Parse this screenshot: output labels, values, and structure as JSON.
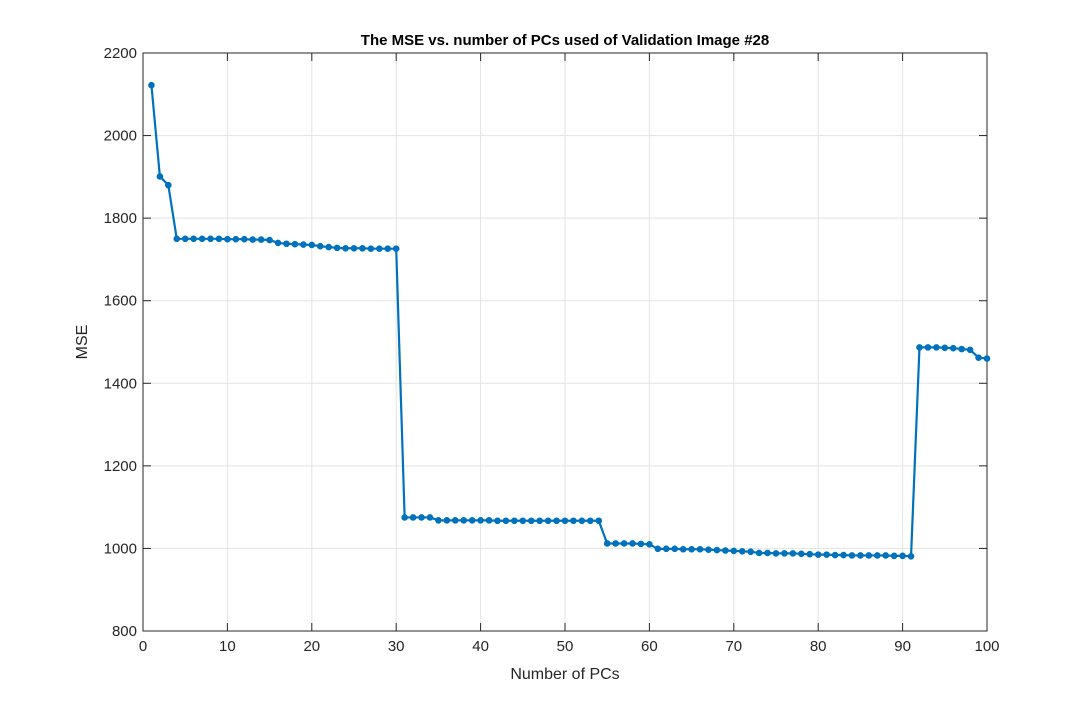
{
  "chart_data": {
    "type": "line",
    "title": "The MSE vs. number of PCs used of Validation Image #28",
    "xlabel": "Number of PCs",
    "ylabel": "MSE",
    "xlim": [
      0,
      100
    ],
    "ylim": [
      800,
      2200
    ],
    "x_ticks": [
      "0",
      "10",
      "20",
      "30",
      "40",
      "50",
      "60",
      "70",
      "80",
      "90",
      "100"
    ],
    "y_ticks": [
      "800",
      "1000",
      "1200",
      "1400",
      "1600",
      "1800",
      "2000",
      "2200"
    ],
    "grid": true,
    "line_color": "#0072BD",
    "series": [
      {
        "x": [
          1,
          2,
          3,
          4,
          5,
          6,
          7,
          8,
          9,
          10,
          11,
          12,
          13,
          14,
          15,
          16,
          17,
          18,
          19,
          20,
          21,
          22,
          23,
          24,
          25,
          26,
          27,
          28,
          29,
          30,
          31,
          32,
          33,
          34,
          35,
          36,
          37,
          38,
          39,
          40,
          41,
          42,
          43,
          44,
          45,
          46,
          47,
          48,
          49,
          50,
          51,
          52,
          53,
          54,
          55,
          56,
          57,
          58,
          59,
          60,
          61,
          62,
          63,
          64,
          65,
          66,
          67,
          68,
          69,
          70,
          71,
          72,
          73,
          74,
          75,
          76,
          77,
          78,
          79,
          80,
          81,
          82,
          83,
          84,
          85,
          86,
          87,
          88,
          89,
          90,
          91,
          92,
          93,
          94,
          95,
          96,
          97,
          98,
          99,
          100
        ],
        "values": [
          2122,
          1901,
          1880,
          1750,
          1750,
          1750,
          1750,
          1750,
          1750,
          1749,
          1749,
          1749,
          1748,
          1748,
          1747,
          1740,
          1738,
          1737,
          1736,
          1735,
          1732,
          1730,
          1728,
          1727,
          1727,
          1727,
          1726,
          1726,
          1726,
          1726,
          1075,
          1075,
          1075,
          1075,
          1068,
          1068,
          1068,
          1068,
          1068,
          1068,
          1068,
          1067,
          1067,
          1067,
          1067,
          1067,
          1067,
          1067,
          1067,
          1067,
          1067,
          1067,
          1067,
          1067,
          1012,
          1012,
          1012,
          1012,
          1011,
          1010,
          999,
          999,
          999,
          998,
          998,
          998,
          997,
          996,
          995,
          994,
          993,
          992,
          989,
          989,
          988,
          988,
          988,
          987,
          986,
          985,
          985,
          984,
          984,
          983,
          983,
          983,
          983,
          983,
          982,
          982,
          981,
          1487,
          1487,
          1487,
          1486,
          1485,
          1483,
          1481,
          1462,
          1460
        ]
      }
    ]
  }
}
